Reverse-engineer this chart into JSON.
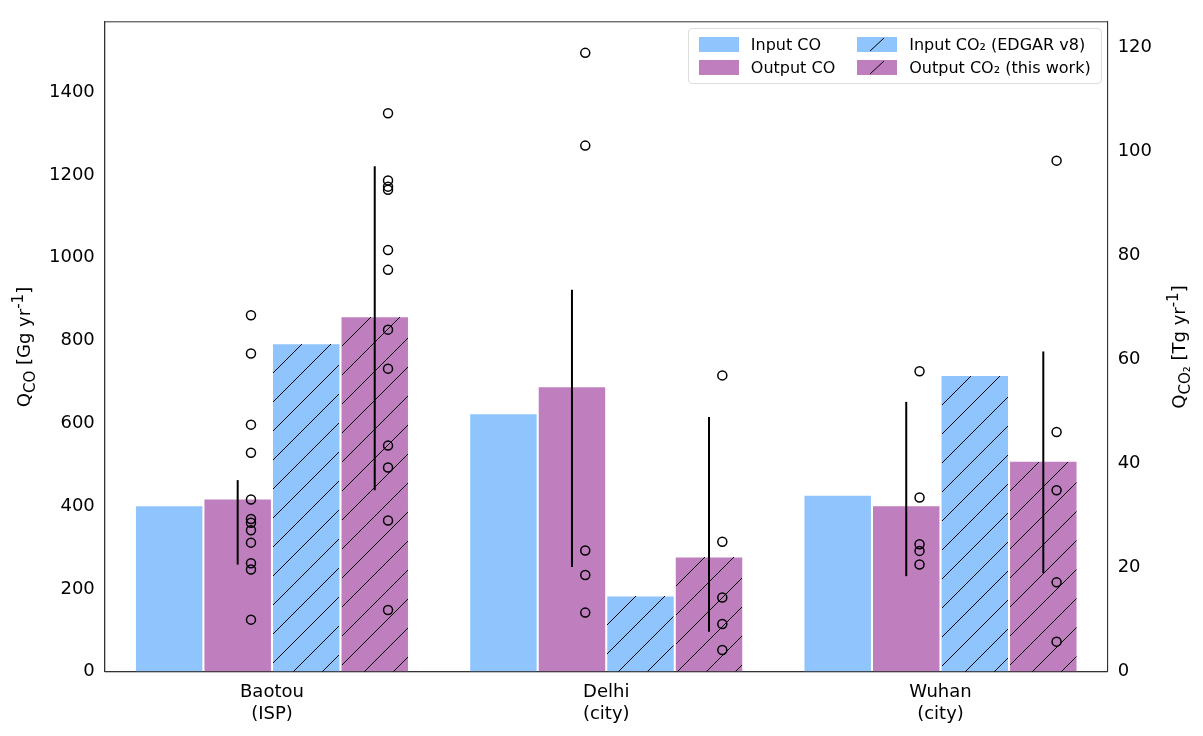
{
  "chart_data": {
    "type": "bar",
    "categories": [
      "Baotou\n(ISP)",
      "Delhi\n(city)",
      "Wuhan\n(city)"
    ],
    "ylabel": "Q$_{CO}$ [Gg yr$^{-1}$]",
    "y2label": "Q$_{CO₂}$ [Tg yr$^{-1}$]",
    "ylim": [
      0,
      1570
    ],
    "yticks": [
      0,
      200,
      400,
      600,
      800,
      1000,
      1200,
      1400
    ],
    "y2lim": [
      0,
      125
    ],
    "y2ticks": [
      0,
      20,
      40,
      60,
      80,
      100,
      120
    ],
    "grid": false,
    "legend": "top right",
    "series": [
      {
        "name": "Input CO",
        "color": "#8fc4fc",
        "values": [
          400,
          622,
          425
        ]
      },
      {
        "name": "Output CO",
        "color": "#bf7fbe",
        "values": [
          416,
          687,
          400
        ],
        "errors": [
          [
            259,
            463
          ],
          [
            253,
            923
          ],
          [
            231,
            652
          ]
        ]
      },
      {
        "name": "Input CO₂ (EDGAR v8)",
        "color": "#8fc4fc",
        "axis": "y2",
        "values": [
          63,
          14.5,
          56.9
        ]
      },
      {
        "name": "Output CO₂ (this work)",
        "color": "#bf7fbe",
        "axis": "y2",
        "values": [
          68.2,
          22.0,
          40.4
        ],
        "errors": [
          [
            34.9,
            97.2
          ],
          [
            7.7,
            49.0
          ],
          [
            19.0,
            61.6
          ]
        ]
      },
      {
        "type": "scatter",
        "color": "#000000",
        "marker": "circle",
        "x": [
          "Baotou\n(ISP)",
          "Baotou\n(ISP)",
          "Baotou\n(ISP)",
          "Baotou\n(ISP)",
          "Baotou\n(ISP)",
          "Baotou\n(ISP)",
          "Baotou\n(ISP)",
          "Baotou\n(ISP)",
          "Baotou\n(ISP)",
          "Baotou\n(ISP)",
          "Baotou\n(ISP)",
          "Baotou\n(ISP)",
          "Delhi\n(city)",
          "Delhi\n(city)",
          "Delhi\n(city)",
          "Delhi\n(city)",
          "Delhi\n(city)",
          "Wuhan\n(city)",
          "Wuhan\n(city)",
          "Wuhan\n(city)",
          "Wuhan\n(city)",
          "Wuhan\n(city)"
        ],
        "values": [
          861,
          769,
          597,
          529,
          416,
          369,
          360,
          342,
          312,
          262,
          247,
          126,
          1495,
          1271,
          293,
          234,
          143,
          726,
          421,
          308,
          292,
          259
        ]
      },
      {
        "type": "scatter",
        "color": "#000000",
        "marker": "circle",
        "axis": "y2",
        "x": [
          "Baotou\n(ISP)",
          "Baotou\n(ISP)",
          "Baotou\n(ISP)",
          "Baotou\n(ISP)",
          "Baotou\n(ISP)",
          "Baotou\n(ISP)",
          "Baotou\n(ISP)",
          "Baotou\n(ISP)",
          "Baotou\n(ISP)",
          "Baotou\n(ISP)",
          "Baotou\n(ISP)",
          "Baotou\n(ISP)",
          "Delhi\n(city)",
          "Delhi\n(city)",
          "Delhi\n(city)",
          "Delhi\n(city)",
          "Delhi\n(city)",
          "Wuhan\n(city)",
          "Wuhan\n(city)",
          "Wuhan\n(city)",
          "Wuhan\n(city)",
          "Wuhan\n(city)"
        ],
        "values": [
          107.4,
          94.5,
          93.3,
          92.7,
          81.1,
          77.3,
          65.8,
          58.3,
          43.5,
          39.3,
          29.1,
          11.9,
          57.0,
          25.0,
          14.3,
          9.2,
          4.2,
          98.3,
          46.1,
          34.9,
          17.2,
          5.8
        ]
      }
    ]
  }
}
